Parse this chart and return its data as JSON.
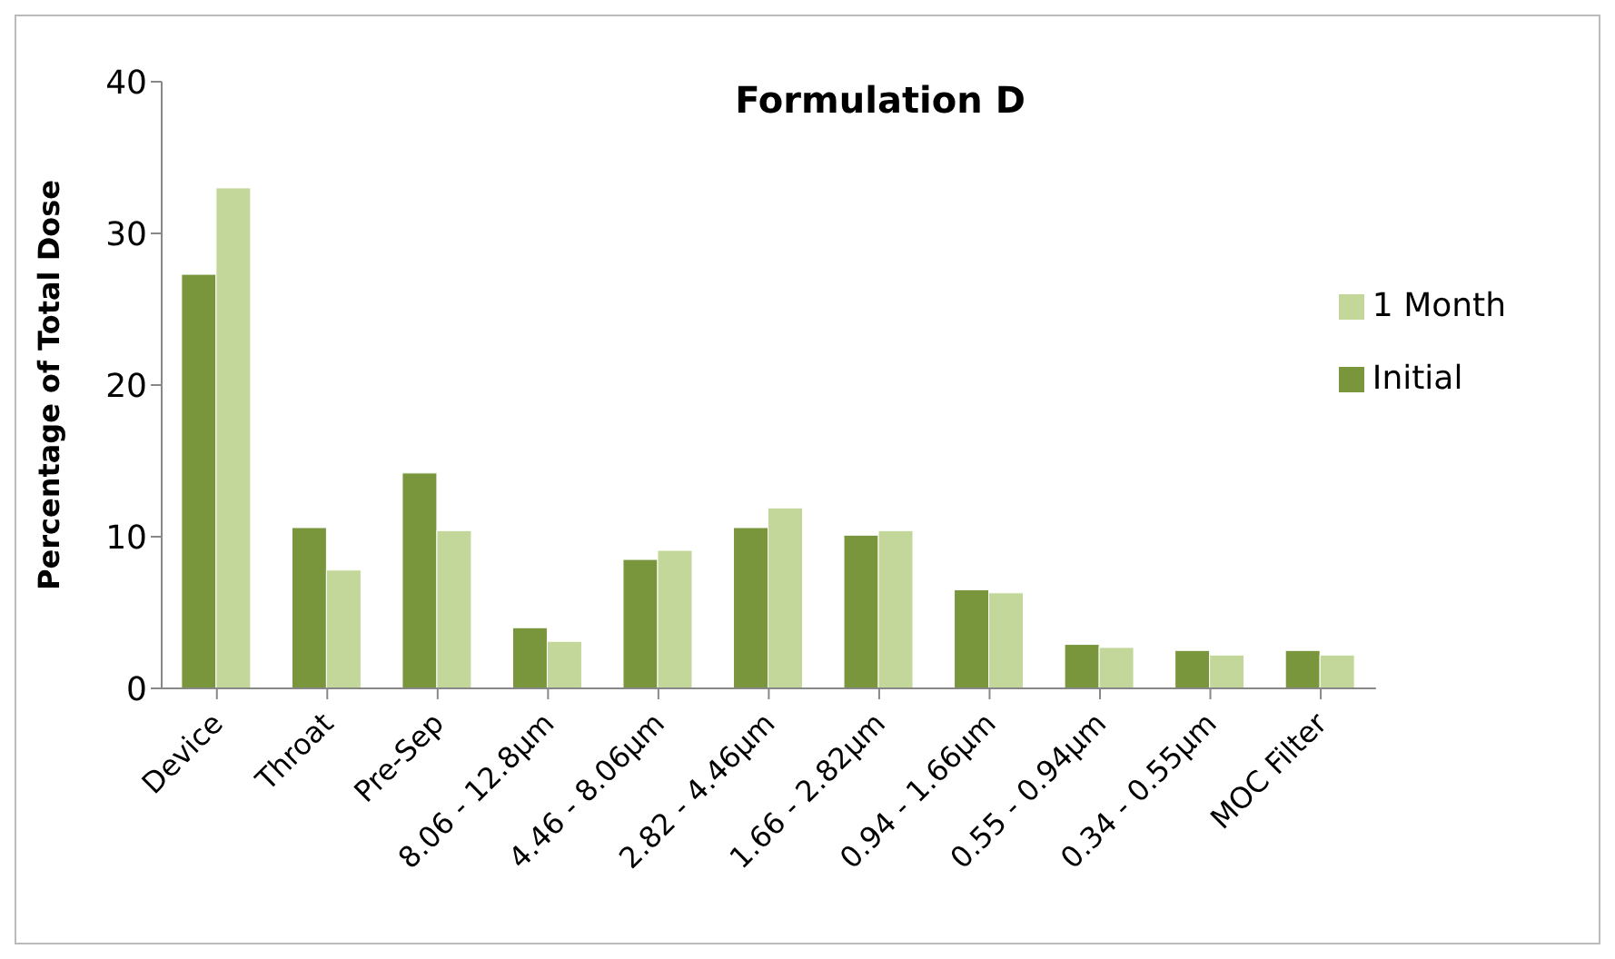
{
  "chart_data": {
    "type": "bar",
    "title": "Formulation D",
    "ylabel": "Percentage of Total Dose",
    "categories": [
      "Device",
      "Throat",
      "Pre-Sep",
      "8.06 - 12.8µm",
      "4.46 - 8.06µm",
      "2.82 - 4.46µm",
      "1.66 - 2.82µm",
      "0.94 - 1.66µm",
      "0.55 - 0.94µm",
      "0.34 - 0.55µm",
      "MOC Filter"
    ],
    "series": [
      {
        "name": "Initial",
        "color": "#7a963c",
        "values": [
          27.3,
          10.6,
          14.2,
          4.0,
          8.5,
          10.6,
          10.1,
          6.5,
          2.9,
          2.5,
          2.5
        ]
      },
      {
        "name": "1 Month",
        "color": "#c4d79b",
        "values": [
          33.0,
          7.8,
          10.4,
          3.1,
          9.1,
          11.9,
          10.4,
          6.3,
          2.7,
          2.2,
          2.2
        ]
      }
    ],
    "ylim": [
      0,
      40
    ],
    "yticks": [
      0,
      10,
      20,
      30,
      40
    ],
    "grid": false,
    "legend": "right"
  }
}
